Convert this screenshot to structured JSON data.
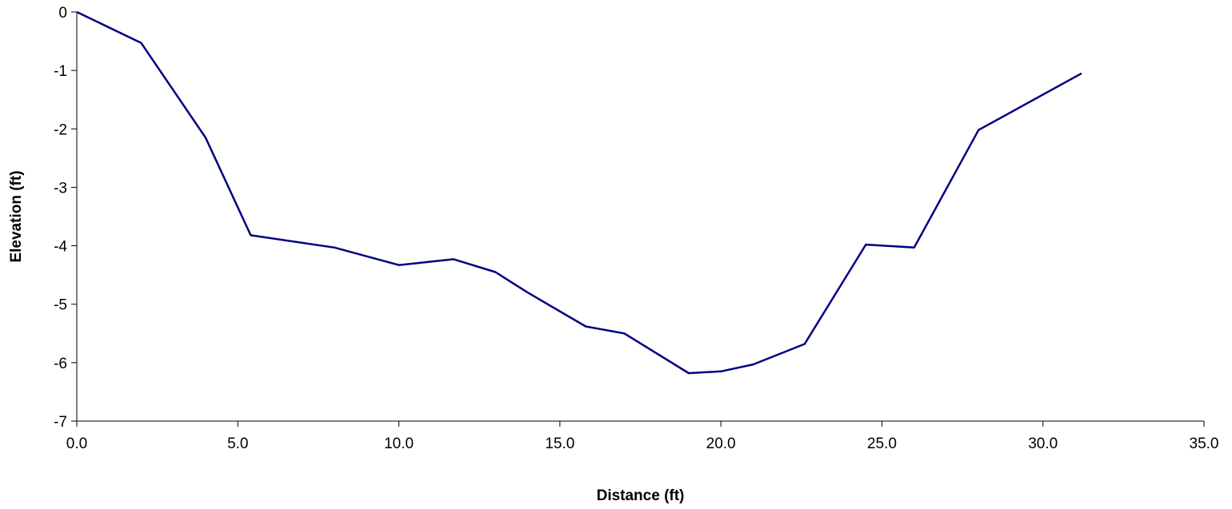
{
  "chart_data": {
    "type": "line",
    "title": "",
    "xlabel": "Distance (ft)",
    "ylabel": "Elevation (ft)",
    "xlim": [
      0,
      35
    ],
    "ylim": [
      -7,
      0
    ],
    "x_ticks": [
      "0.0",
      "5.0",
      "10.0",
      "15.0",
      "20.0",
      "25.0",
      "30.0",
      "35.0"
    ],
    "y_ticks": [
      "0",
      "-1",
      "-2",
      "-3",
      "-4",
      "-5",
      "-6",
      "-7"
    ],
    "grid": false,
    "legend": "none",
    "line_color": "#000080",
    "series": [
      {
        "x": [
          0.0,
          2.0,
          4.0,
          5.4,
          8.0,
          10.0,
          11.7,
          13.0,
          14.0,
          15.8,
          17.0,
          19.0,
          20.0,
          21.0,
          22.6,
          24.5,
          26.0,
          28.0,
          31.2
        ],
        "y": [
          0.0,
          -0.53,
          -2.15,
          -3.82,
          -4.03,
          -4.33,
          -4.23,
          -4.45,
          -4.8,
          -5.38,
          -5.5,
          -6.18,
          -6.15,
          -6.03,
          -5.68,
          -3.98,
          -4.03,
          -2.02,
          -1.05
        ]
      }
    ]
  }
}
